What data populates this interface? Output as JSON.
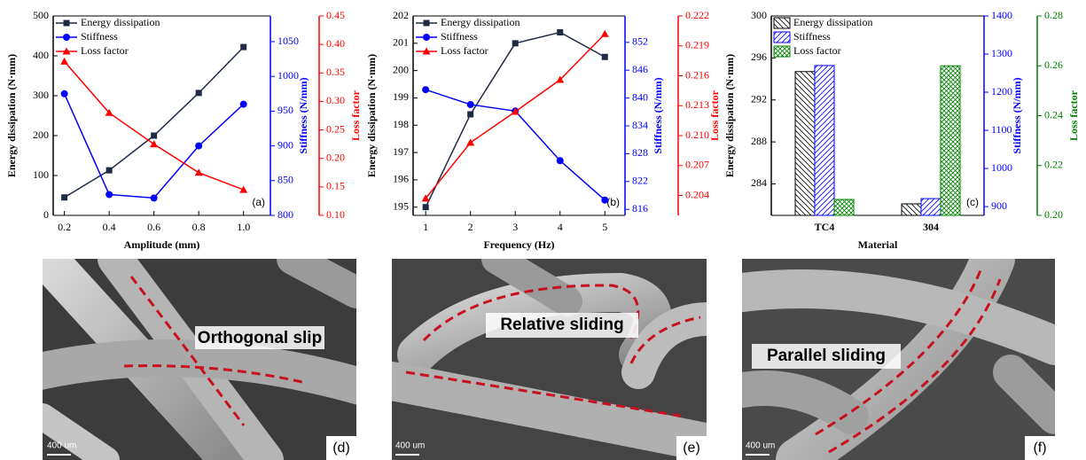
{
  "chart_data": [
    {
      "type": "line",
      "panel_label": "(a)",
      "xlabel": "Amplitude (mm)",
      "ylabel": "Energy dissipation (N·mm)",
      "y2label": "Stiffness (N/mm)",
      "y3label": "Loss factor",
      "x": [
        0.2,
        0.4,
        0.6,
        0.8,
        1.0
      ],
      "xlim": [
        0.15,
        1.12
      ],
      "xticks": [
        0.2,
        0.4,
        0.6,
        0.8,
        {
          "value": 1.0,
          "label": "1.0"
        }
      ],
      "ylim": [
        0,
        500
      ],
      "yticks": [
        0,
        100,
        200,
        300,
        400,
        500
      ],
      "y2lim": [
        800,
        1087
      ],
      "y2ticks": [
        800,
        850,
        900,
        950,
        1000,
        1050
      ],
      "y3lim": [
        0.1,
        0.45
      ],
      "y3ticks": [
        {
          "value": 0.1,
          "label": "0.10"
        },
        0.15,
        {
          "value": 0.2,
          "label": "0.20"
        },
        0.25,
        {
          "value": 0.3,
          "label": "0.30"
        },
        0.35,
        {
          "value": 0.4,
          "label": "0.40"
        },
        0.45
      ],
      "legend": "upper left",
      "series": [
        {
          "name": "Energy dissipation",
          "color": "#1f2a44",
          "marker": "square",
          "axis": "y",
          "values": [
            45,
            113,
            200,
            307,
            422
          ]
        },
        {
          "name": "Stiffness",
          "color": "#0000ff",
          "marker": "circle",
          "axis": "y2",
          "values": [
            975,
            830,
            825,
            900,
            960
          ]
        },
        {
          "name": "Loss factor",
          "color": "#ff0000",
          "marker": "triangle",
          "axis": "y3",
          "values": [
            0.37,
            0.28,
            0.225,
            0.175,
            0.145
          ]
        }
      ]
    },
    {
      "type": "line",
      "panel_label": "(b)",
      "xlabel": "Frequency (Hz)",
      "ylabel": "Energy dissipation (N·mm)",
      "y2label": "Stiffness (N/mm)",
      "y3label": "Loss factor",
      "x": [
        1,
        2,
        3,
        4,
        5
      ],
      "xlim": [
        0.72,
        5.45
      ],
      "xticks": [
        1,
        2,
        3,
        4,
        5
      ],
      "ylim": [
        194.7,
        202
      ],
      "yticks": [
        195,
        196,
        197,
        198,
        199,
        200,
        201,
        202
      ],
      "y2lim": [
        814.7,
        857.7
      ],
      "y2ticks": [
        816,
        822,
        828,
        834,
        840,
        846,
        852
      ],
      "y3lim": [
        0.202,
        0.222
      ],
      "y3ticks": [
        0.204,
        0.207,
        {
          "value": 0.21,
          "label": "0.210"
        },
        0.213,
        0.216,
        0.219,
        0.222
      ],
      "legend": "upper left",
      "series": [
        {
          "name": "Energy dissipation",
          "color": "#1f2a44",
          "marker": "square",
          "axis": "y",
          "values": [
            195.0,
            198.4,
            201.0,
            201.4,
            200.5
          ]
        },
        {
          "name": "Stiffness",
          "color": "#0000ff",
          "marker": "circle",
          "axis": "y2",
          "values": [
            841.8,
            838.6,
            837.2,
            826.5,
            818
          ]
        },
        {
          "name": "Loss factor",
          "color": "#ff0000",
          "marker": "triangle",
          "axis": "y3",
          "values": [
            0.2037,
            0.2093,
            0.2124,
            0.2156,
            0.2202
          ]
        }
      ]
    },
    {
      "type": "bar",
      "panel_label": "(c)",
      "xlabel": "Material",
      "ylabel": "Energy dissipation (N·mm)",
      "y2label": "Stiffness (N/mm)",
      "y3label": "Loss factor",
      "categories": [
        "TC4",
        "304"
      ],
      "ylim": [
        281,
        300
      ],
      "yticks": [
        284,
        288,
        292,
        296,
        300
      ],
      "y2lim": [
        877,
        1400
      ],
      "y2ticks": [
        900,
        1000,
        1100,
        1200,
        1300,
        1400
      ],
      "y3lim": [
        0.2,
        0.28
      ],
      "y3ticks": [
        {
          "value": 0.2,
          "label": "0.20"
        },
        0.22,
        0.24,
        0.26,
        0.28
      ],
      "legend": "upper left",
      "series": [
        {
          "name": "Energy dissipation",
          "color": "#000000",
          "axis": "y",
          "values": [
            294.7,
            282.1
          ]
        },
        {
          "name": "Stiffness",
          "color": "#0000ff",
          "axis": "y2",
          "values": [
            1270,
            921
          ]
        },
        {
          "name": "Loss factor",
          "color": "#008000",
          "axis": "y3",
          "values": [
            0.2064,
            0.26
          ]
        }
      ]
    }
  ],
  "images": [
    {
      "panel_label": "(d)",
      "annotation": "Orthogonal slip",
      "scale_bar": "400 um"
    },
    {
      "panel_label": "(e)",
      "annotation": "Relative sliding",
      "scale_bar": "400 um"
    },
    {
      "panel_label": "(f)",
      "annotation": "Parallel sliding",
      "scale_bar": "400 um"
    }
  ]
}
